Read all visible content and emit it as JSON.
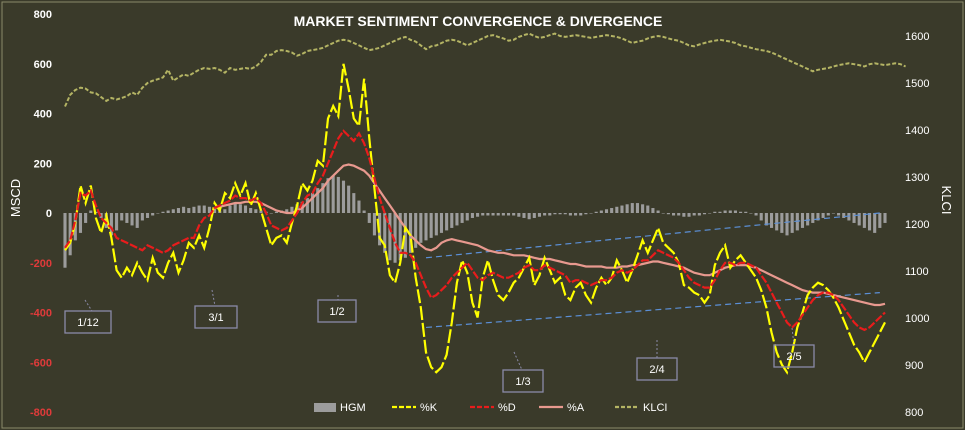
{
  "chart_data": {
    "type": "line",
    "title": "MARKET SENTIMENT CONVERGENCE & DIVERGENCE",
    "ylabel_left": "MSCD",
    "ylabel_right": "KLCI",
    "ylim_left": [
      -800,
      800
    ],
    "ylim_right": [
      800,
      1650
    ],
    "yticks_left": [
      "800",
      "600",
      "400",
      "200",
      "0",
      "-200",
      "-400",
      "-600",
      "-800"
    ],
    "yticks_left_values": [
      800,
      600,
      400,
      200,
      0,
      -200,
      -400,
      -600,
      -800
    ],
    "yticks_right": [
      "1600",
      "1500",
      "1400",
      "1300",
      "1200",
      "1100",
      "1000",
      "900",
      "800"
    ],
    "yticks_right_values": [
      1600,
      1500,
      1400,
      1300,
      1200,
      1100,
      1000,
      900,
      800
    ],
    "grid": false,
    "legend_position": "bottom",
    "x_count": 160,
    "series": [
      {
        "name": "HGM",
        "kind": "bar",
        "axis": "left",
        "color": "#9c9c9c",
        "values": [
          -220,
          -170,
          -110,
          -80,
          -40,
          10,
          5,
          -20,
          -60,
          -90,
          -70,
          -30,
          -40,
          -50,
          -60,
          -30,
          -20,
          -10,
          0,
          5,
          10,
          15,
          20,
          25,
          20,
          25,
          30,
          30,
          25,
          20,
          10,
          15,
          30,
          40,
          35,
          30,
          20,
          15,
          10,
          5,
          0,
          5,
          10,
          15,
          25,
          35,
          45,
          60,
          80,
          100,
          120,
          140,
          150,
          145,
          130,
          110,
          80,
          50,
          10,
          -40,
          -90,
          -130,
          -160,
          -190,
          -200,
          -190,
          -180,
          -160,
          -140,
          -120,
          -110,
          -100,
          -90,
          -80,
          -70,
          -60,
          -50,
          -40,
          -30,
          -20,
          -15,
          -10,
          -10,
          -10,
          -10,
          -10,
          -10,
          -10,
          -15,
          -20,
          -25,
          -20,
          -15,
          -10,
          -10,
          -5,
          -5,
          -5,
          -10,
          -10,
          -10,
          -5,
          0,
          5,
          10,
          15,
          20,
          25,
          30,
          35,
          40,
          40,
          35,
          30,
          20,
          10,
          0,
          -5,
          -10,
          -10,
          -15,
          -15,
          -10,
          -10,
          -5,
          0,
          5,
          5,
          10,
          10,
          10,
          5,
          5,
          0,
          -10,
          -30,
          -50,
          -60,
          -70,
          -80,
          -90,
          -80,
          -70,
          -60,
          -50,
          -40,
          -30,
          -20,
          -10,
          0,
          -10,
          -20,
          -30,
          -40,
          -50,
          -60,
          -70,
          -80,
          -60,
          -40
        ]
      },
      {
        "name": "%K",
        "kind": "line",
        "axis": "left",
        "color": "#ffff00",
        "values": [
          -150,
          -120,
          -40,
          110,
          40,
          110,
          -20,
          -80,
          -10,
          -100,
          -230,
          -260,
          -220,
          -250,
          -200,
          -240,
          -270,
          -180,
          -240,
          -260,
          -200,
          -160,
          -240,
          -190,
          -120,
          -140,
          -90,
          -140,
          -60,
          40,
          10,
          80,
          60,
          120,
          70,
          120,
          30,
          80,
          10,
          -60,
          -130,
          -100,
          -90,
          -120,
          -40,
          30,
          120,
          90,
          130,
          210,
          190,
          380,
          430,
          390,
          600,
          500,
          380,
          350,
          540,
          300,
          100,
          -100,
          -130,
          -250,
          -280,
          -200,
          -60,
          -90,
          -260,
          -380,
          -560,
          -620,
          -640,
          -620,
          -570,
          -440,
          -280,
          -190,
          -240,
          -360,
          -420,
          -260,
          -190,
          -270,
          -330,
          -350,
          -320,
          -280,
          -260,
          -220,
          -180,
          -290,
          -250,
          -180,
          -230,
          -280,
          -260,
          -330,
          -350,
          -300,
          -280,
          -330,
          -360,
          -300,
          -260,
          -290,
          -260,
          -190,
          -230,
          -280,
          -230,
          -170,
          -110,
          -160,
          -110,
          -60,
          -120,
          -140,
          -160,
          -200,
          -290,
          -300,
          -320,
          -330,
          -360,
          -330,
          -210,
          -160,
          -130,
          -220,
          -190,
          -170,
          -200,
          -230,
          -260,
          -310,
          -380,
          -480,
          -560,
          -610,
          -640,
          -560,
          -460,
          -400,
          -330,
          -300,
          -280,
          -290,
          -310,
          -340,
          -380,
          -430,
          -480,
          -530,
          -560,
          -600,
          -560,
          -520,
          -480,
          -440
        ]
      },
      {
        "name": "%D",
        "kind": "line",
        "axis": "left",
        "color": "#e81c1c",
        "values": [
          -140,
          -110,
          -30,
          80,
          70,
          90,
          30,
          -20,
          -40,
          -60,
          -100,
          -110,
          -120,
          -130,
          -140,
          -150,
          -130,
          -140,
          -150,
          -160,
          -150,
          -130,
          -120,
          -110,
          -100,
          -100,
          -50,
          -20,
          -10,
          20,
          30,
          40,
          50,
          70,
          60,
          60,
          50,
          60,
          40,
          0,
          -50,
          -60,
          -70,
          -60,
          -30,
          0,
          40,
          70,
          80,
          120,
          150,
          200,
          250,
          300,
          330,
          310,
          290,
          320,
          280,
          220,
          140,
          60,
          0,
          -60,
          -120,
          -160,
          -160,
          -170,
          -200,
          -250,
          -300,
          -340,
          -330,
          -310,
          -290,
          -260,
          -240,
          -220,
          -200,
          -230,
          -260,
          -270,
          -250,
          -240,
          -250,
          -260,
          -260,
          -250,
          -240,
          -220,
          -210,
          -230,
          -230,
          -210,
          -220,
          -230,
          -240,
          -250,
          -280,
          -270,
          -270,
          -280,
          -290,
          -280,
          -270,
          -270,
          -260,
          -240,
          -230,
          -240,
          -230,
          -210,
          -190,
          -190,
          -170,
          -150,
          -160,
          -170,
          -180,
          -200,
          -230,
          -260,
          -280,
          -290,
          -300,
          -300,
          -270,
          -230,
          -200,
          -200,
          -210,
          -200,
          -200,
          -210,
          -220,
          -250,
          -280,
          -320,
          -360,
          -400,
          -440,
          -460,
          -440,
          -410,
          -380,
          -350,
          -330,
          -320,
          -320,
          -330,
          -350,
          -380,
          -410,
          -440,
          -460,
          -470,
          -460,
          -440,
          -420,
          -400
        ]
      },
      {
        "name": "%A",
        "kind": "line",
        "axis": "left",
        "color": "#e8998f",
        "values": [
          null,
          null,
          null,
          null,
          null,
          null,
          null,
          null,
          null,
          null,
          null,
          null,
          null,
          null,
          null,
          null,
          null,
          null,
          null,
          null,
          null,
          null,
          null,
          null,
          null,
          null,
          null,
          null,
          null,
          20,
          25,
          30,
          35,
          40,
          40,
          45,
          45,
          45,
          40,
          30,
          20,
          10,
          5,
          0,
          0,
          10,
          20,
          40,
          60,
          80,
          100,
          130,
          150,
          170,
          190,
          195,
          190,
          180,
          170,
          150,
          120,
          90,
          60,
          30,
          0,
          -30,
          -60,
          -90,
          -110,
          -130,
          -145,
          -150,
          -140,
          -120,
          -110,
          -105,
          -110,
          -115,
          -120,
          -125,
          -130,
          -140,
          -150,
          -155,
          -160,
          -160,
          -165,
          -170,
          -170,
          -170,
          -175,
          -180,
          -185,
          -185,
          -185,
          -190,
          -195,
          -200,
          -205,
          -205,
          -210,
          -215,
          -215,
          -215,
          -215,
          -220,
          -220,
          -220,
          -215,
          -215,
          -210,
          -210,
          -205,
          -200,
          -195,
          -195,
          -200,
          -205,
          -210,
          -215,
          -220,
          -230,
          -240,
          -245,
          -250,
          -250,
          -240,
          -230,
          -220,
          -215,
          -210,
          -210,
          -210,
          -215,
          -220,
          -230,
          -240,
          -250,
          -260,
          -270,
          -280,
          -290,
          -300,
          -310,
          -315,
          -320,
          -320,
          -320,
          -325,
          -330,
          -335,
          -340,
          -345,
          -350,
          -355,
          -360,
          -365,
          -370,
          -370,
          -365
        ]
      },
      {
        "name": "KLCI",
        "kind": "line",
        "axis": "right",
        "color": "#b4b464",
        "values": [
          1450,
          1475,
          1485,
          1490,
          1488,
          1480,
          1478,
          1470,
          1462,
          1468,
          1465,
          1468,
          1472,
          1480,
          1475,
          1490,
          1500,
          1505,
          1508,
          1512,
          1528,
          1505,
          1512,
          1518,
          1515,
          1522,
          1528,
          1532,
          1530,
          1532,
          1528,
          1522,
          1532,
          1528,
          1530,
          1532,
          1530,
          1535,
          1545,
          1560,
          1560,
          1568,
          1570,
          1568,
          1565,
          1558,
          1562,
          1568,
          1570,
          1572,
          1575,
          1580,
          1585,
          1590,
          1592,
          1590,
          1585,
          1580,
          1575,
          1570,
          1572,
          1575,
          1580,
          1585,
          1590,
          1595,
          1598,
          1592,
          1588,
          1580,
          1572,
          1578,
          1580,
          1585,
          1590,
          1592,
          1590,
          1585,
          1580,
          1585,
          1590,
          1595,
          1600,
          1602,
          1598,
          1595,
          1590,
          1592,
          1598,
          1602,
          1605,
          1600,
          1596,
          1598,
          1602,
          1605,
          1600,
          1598,
          1600,
          1602,
          1600,
          1598,
          1596,
          1598,
          1600,
          1602,
          1600,
          1598,
          1595,
          1590,
          1585,
          1588,
          1590,
          1595,
          1598,
          1600,
          1598,
          1595,
          1592,
          1590,
          1585,
          1580,
          1578,
          1582,
          1585,
          1588,
          1590,
          1592,
          1590,
          1588,
          1585,
          1580,
          1578,
          1575,
          1572,
          1570,
          1568,
          1565,
          1560,
          1555,
          1550,
          1545,
          1540,
          1535,
          1530,
          1525,
          1528,
          1530,
          1532,
          1535,
          1538,
          1540,
          1542,
          1540,
          1538,
          1535,
          1540,
          1542,
          1540,
          1538,
          1540,
          1542,
          1540,
          1535
        ]
      }
    ],
    "annotations": [
      {
        "text": "1/12"
      },
      {
        "text": "3/1"
      },
      {
        "text": "1/2"
      },
      {
        "text": "1/3"
      },
      {
        "text": "2/4"
      },
      {
        "text": "2/5"
      }
    ],
    "trendlines": {
      "color": "#5b8fd6",
      "style": "dashed"
    },
    "colors": {
      "background": "#3a3a2a",
      "text": "#ffffff",
      "negative_tick": "#e03a3a",
      "annotation_border": "#8a8aa8"
    }
  }
}
